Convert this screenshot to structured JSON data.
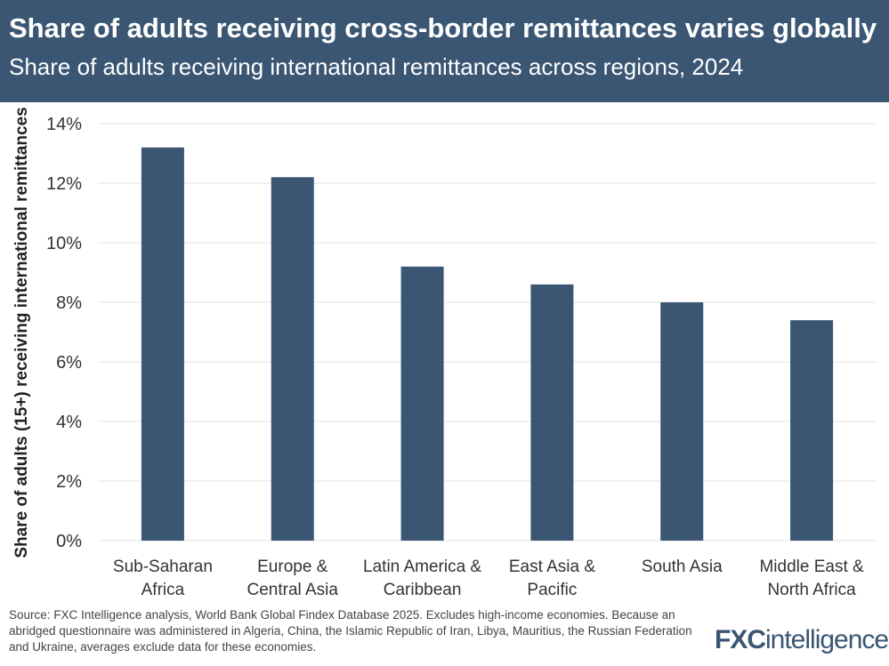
{
  "header": {
    "title": "Share of adults receiving cross-border remittances varies globally",
    "subtitle": "Share of adults receiving international remittances across regions, 2024"
  },
  "chart_data": {
    "type": "bar",
    "categories": [
      [
        "Sub-Saharan",
        "Africa"
      ],
      [
        "Europe &",
        "Central Asia"
      ],
      [
        "Latin America &",
        "Caribbean"
      ],
      [
        "East Asia &",
        "Pacific"
      ],
      [
        "South Asia"
      ],
      [
        "Middle East &",
        "North Africa"
      ]
    ],
    "values": [
      13.2,
      12.2,
      9.2,
      8.6,
      8.0,
      7.4
    ],
    "ylabel": "Share of adults (15+) receiving international remittances",
    "ylim": [
      0,
      14
    ],
    "yticks": [
      "0%",
      "2%",
      "4%",
      "6%",
      "8%",
      "10%",
      "12%",
      "14%"
    ],
    "grid": true,
    "bar_color": "#3a5673"
  },
  "footer": {
    "source": "Source: FXC Intelligence analysis, World Bank Global Findex Database 2025. Excludes high-income economies. Because an abridged questionnaire was administered in Algeria, China, the Islamic Republic of Iran, Libya, Mauritius, the Russian Federation and Ukraine, averages exclude data for these economies."
  },
  "logo": {
    "text_a": "FXC",
    "text_b": "intelligence",
    "tm": "™"
  }
}
